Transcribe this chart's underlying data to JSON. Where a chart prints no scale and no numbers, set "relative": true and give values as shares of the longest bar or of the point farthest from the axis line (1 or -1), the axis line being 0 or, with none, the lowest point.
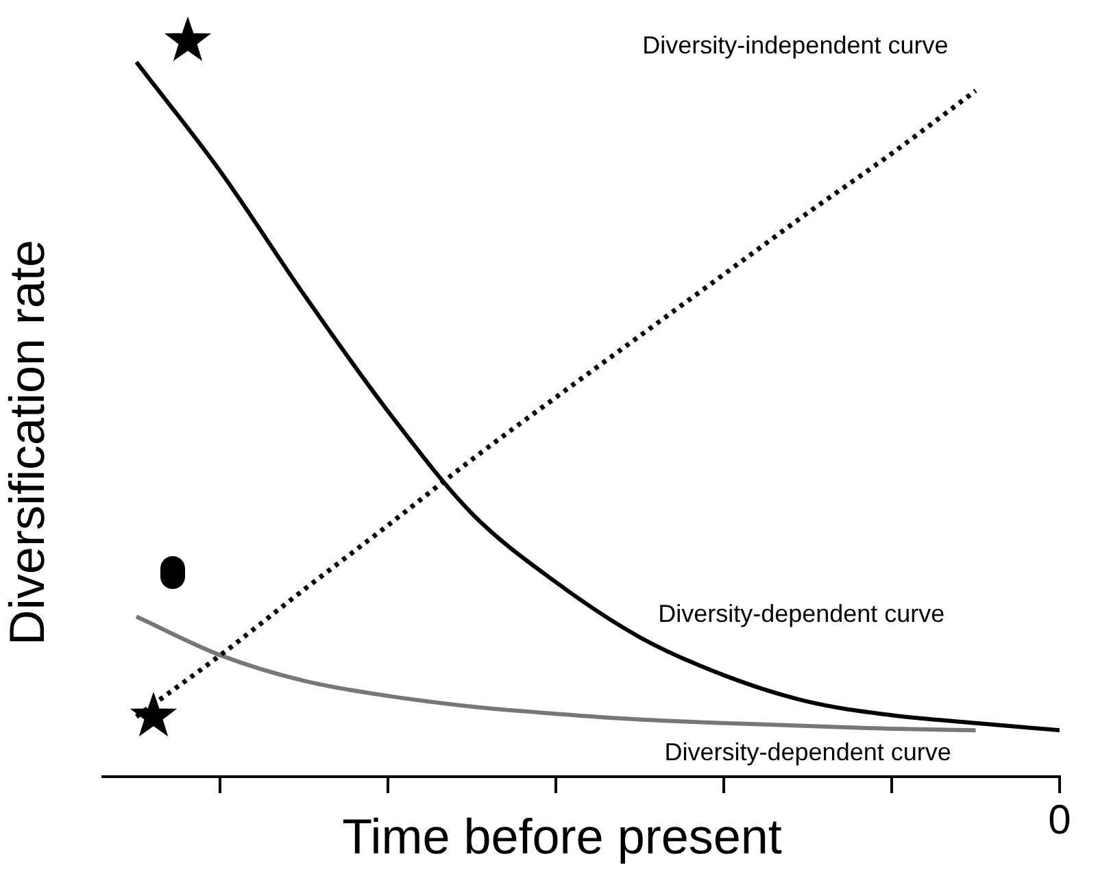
{
  "chart_data": {
    "type": "line",
    "xlabel": "Time before present",
    "ylabel": "Diversification rate",
    "relative": true,
    "grid": false,
    "legend": false,
    "marker": "none",
    "categories": [
      null,
      null,
      null,
      null,
      null,
      null,
      null,
      null,
      null,
      null,
      null,
      null
    ],
    "annotations": [
      "0"
    ],
    "series": [
      {
        "name": "Diversity-dependent curve",
        "color": "#000000",
        "line_style": "solid",
        "values": [
          1.0,
          0.847,
          0.674,
          0.511,
          0.368,
          0.272,
          0.195,
          0.142,
          0.105,
          0.086,
          0.075,
          0.065
        ]
      },
      {
        "name": "Diversity-independent curve",
        "color": "#000000",
        "line_style": "dotted",
        "values": [
          0.084,
          0.17,
          0.262,
          0.352,
          0.444,
          0.531,
          0.617,
          0.703,
          0.789,
          0.872,
          0.96,
          null
        ]
      },
      {
        "name": "Diversity-dependent curve",
        "color": "#777777",
        "line_style": "solid",
        "values": [
          0.224,
          0.17,
          0.134,
          0.113,
          0.098,
          0.088,
          0.08,
          0.075,
          0.071,
          0.067,
          0.065,
          null
        ]
      }
    ]
  }
}
